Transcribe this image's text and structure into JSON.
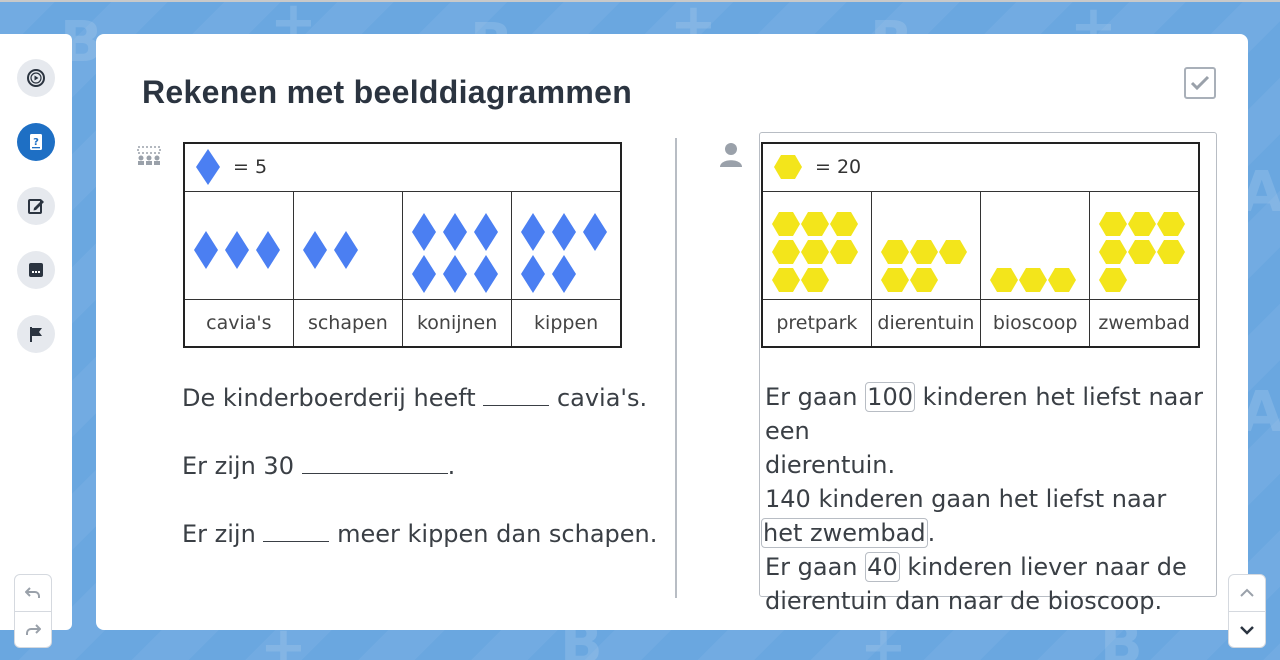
{
  "title": "Rekenen met beelddiagrammen",
  "left_chart": {
    "legend_value": "= 5",
    "legend_icon": "blue-diamond-icon",
    "color": "#4b7ff2",
    "categories": [
      "cavia's",
      "schapen",
      "konijnen",
      "kippen"
    ],
    "icon_counts": [
      3,
      2,
      6,
      5
    ]
  },
  "right_chart": {
    "legend_value": "= 20",
    "legend_icon": "yellow-hexagon-icon",
    "color": "#f3e51b",
    "categories": [
      "pretpark",
      "dierentuin",
      "bioscoop",
      "zwembad"
    ],
    "icon_counts": [
      8,
      5,
      3,
      7
    ]
  },
  "left_questions": [
    {
      "before": "De kinderboerderij heeft",
      "after": "cavia's."
    },
    {
      "before": "Er zijn 30",
      "after": "."
    },
    {
      "before": "Er zijn",
      "after": "meer kippen dan schapen."
    }
  ],
  "right_answers": {
    "line1_before": "Er gaan",
    "answer1": "100",
    "line1_after": "kinderen het liefst naar een",
    "line2": "dierentuin.",
    "line3": "140 kinderen gaan het liefst naar",
    "answer2": "het zwembad",
    "line4_after": ".",
    "line5_before": "Er gaan",
    "answer3": "40",
    "line5_after": "kinderen liever naar de",
    "line6": "dierentuin dan naar de bioscoop."
  },
  "toolbar": {
    "icons": [
      "play-circle-icon",
      "question-book-icon",
      "edit-icon",
      "notes-icon",
      "flag-icon"
    ],
    "active_index": 1
  },
  "colors": {
    "background": "#6aa7e0",
    "accent": "#1e6fc4",
    "diamond": "#4b7ff2",
    "hexagon": "#f3e51b"
  }
}
